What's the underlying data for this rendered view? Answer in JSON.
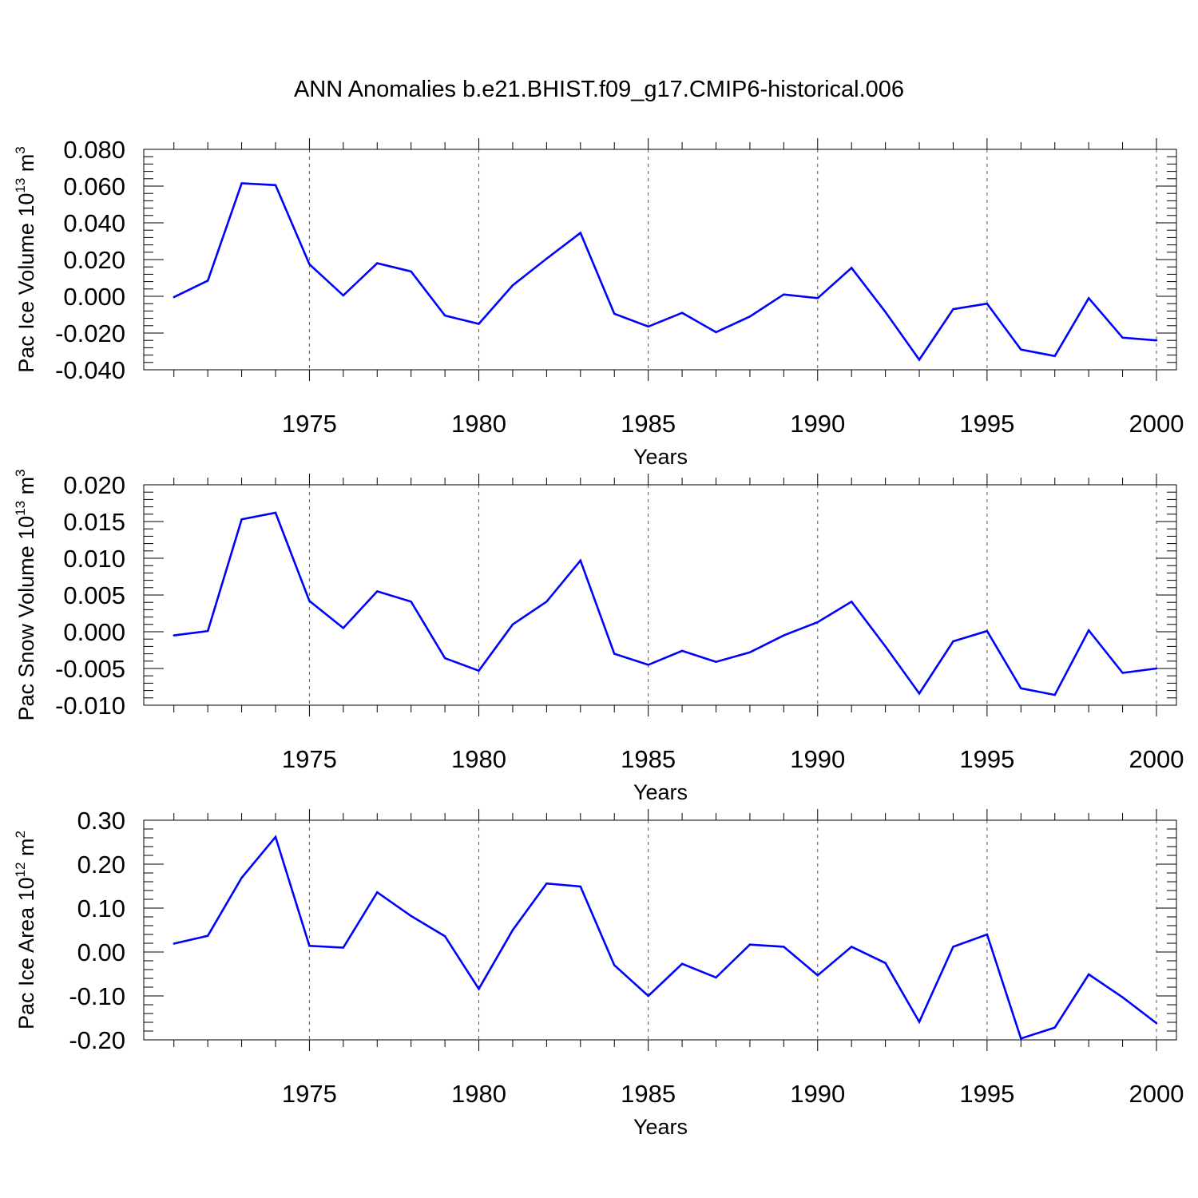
{
  "title": "ANN Anomalies b.e21.BHIST.f09_g17.CMIP6-historical.006",
  "line_color": "#0000ff",
  "chart_data": [
    {
      "type": "line",
      "ylabel_main": "Pac Ice Volume 10",
      "ylabel_exp": "13",
      "ylabel_unit": " m",
      "ylabel_unit_exp": "3",
      "xlabel": "Years",
      "xlim": [
        1970.7,
        2000
      ],
      "ylim": [
        -0.04,
        0.08
      ],
      "yticks": [
        -0.04,
        -0.02,
        0.0,
        0.02,
        0.04,
        0.06,
        0.08
      ],
      "ytick_labels": [
        "-0.040",
        "-0.020",
        "0.000",
        "0.020",
        "0.040",
        "0.060",
        "0.080"
      ],
      "xticks": [
        1975,
        1980,
        1985,
        1990,
        1995,
        2000
      ],
      "xtick_labels": [
        "1975",
        "1980",
        "1985",
        "1990",
        "1995",
        "2000"
      ],
      "grid": "vertical dashed at major x ticks",
      "x": [
        1971,
        1972,
        1973,
        1974,
        1975,
        1976,
        1977,
        1978,
        1979,
        1980,
        1981,
        1982,
        1983,
        1984,
        1985,
        1986,
        1987,
        1988,
        1989,
        1990,
        1991,
        1992,
        1993,
        1994,
        1995,
        1996,
        1997,
        1998,
        1999,
        2000
      ],
      "values": [
        -0.0005,
        0.0085,
        0.0615,
        0.0605,
        0.0175,
        0.0005,
        0.018,
        0.0135,
        -0.0105,
        -0.015,
        0.006,
        0.0205,
        0.0345,
        -0.0095,
        -0.0165,
        -0.009,
        -0.0195,
        -0.011,
        0.001,
        -0.001,
        0.0155,
        -0.0085,
        -0.0345,
        -0.007,
        -0.004,
        -0.029,
        -0.0325,
        -0.001,
        -0.0225,
        -0.024
      ]
    },
    {
      "type": "line",
      "ylabel_main": "Pac Snow Volume 10",
      "ylabel_exp": "13",
      "ylabel_unit": " m",
      "ylabel_unit_exp": "3",
      "xlabel": "Years",
      "xlim": [
        1970.7,
        2000
      ],
      "ylim": [
        -0.01,
        0.02
      ],
      "yticks": [
        -0.01,
        -0.005,
        0.0,
        0.005,
        0.01,
        0.015,
        0.02
      ],
      "ytick_labels": [
        "-0.010",
        "-0.005",
        "0.000",
        "0.005",
        "0.010",
        "0.015",
        "0.020"
      ],
      "xticks": [
        1975,
        1980,
        1985,
        1990,
        1995,
        2000
      ],
      "xtick_labels": [
        "1975",
        "1980",
        "1985",
        "1990",
        "1995",
        "2000"
      ],
      "grid": "vertical dashed at major x ticks",
      "x": [
        1971,
        1972,
        1973,
        1974,
        1975,
        1976,
        1977,
        1978,
        1979,
        1980,
        1981,
        1982,
        1983,
        1984,
        1985,
        1986,
        1987,
        1988,
        1989,
        1990,
        1991,
        1992,
        1993,
        1994,
        1995,
        1996,
        1997,
        1998,
        1999,
        2000
      ],
      "values": [
        -0.0005,
        0.0001,
        0.0153,
        0.0162,
        0.0042,
        0.0005,
        0.0055,
        0.0041,
        -0.0036,
        -0.0053,
        0.001,
        0.0041,
        0.0097,
        -0.003,
        -0.0045,
        -0.0026,
        -0.0041,
        -0.0028,
        -0.0005,
        0.0013,
        0.0041,
        -0.002,
        -0.0084,
        -0.0013,
        0.0001,
        -0.0077,
        -0.0086,
        0.0002,
        -0.0056,
        -0.005
      ]
    },
    {
      "type": "line",
      "ylabel_main": "Pac Ice Area 10",
      "ylabel_exp": "12",
      "ylabel_unit": " m",
      "ylabel_unit_exp": "2",
      "xlabel": "Years",
      "xlim": [
        1970.7,
        2000
      ],
      "ylim": [
        -0.2,
        0.3
      ],
      "yticks": [
        -0.2,
        -0.1,
        0.0,
        0.1,
        0.2,
        0.3
      ],
      "ytick_labels": [
        "-0.20",
        "-0.10",
        "0.00",
        "0.10",
        "0.20",
        "0.30"
      ],
      "xticks": [
        1975,
        1980,
        1985,
        1990,
        1995,
        2000
      ],
      "xtick_labels": [
        "1975",
        "1980",
        "1985",
        "1990",
        "1995",
        "2000"
      ],
      "grid": "vertical dashed at major x ticks",
      "x": [
        1971,
        1972,
        1973,
        1974,
        1975,
        1976,
        1977,
        1978,
        1979,
        1980,
        1981,
        1982,
        1983,
        1984,
        1985,
        1986,
        1987,
        1988,
        1989,
        1990,
        1991,
        1992,
        1993,
        1994,
        1995,
        1996,
        1997,
        1998,
        1999,
        2000
      ],
      "values": [
        0.019,
        0.037,
        0.169,
        0.262,
        0.014,
        0.01,
        0.136,
        0.082,
        0.036,
        -0.084,
        0.05,
        0.156,
        0.149,
        -0.03,
        -0.1,
        -0.027,
        -0.058,
        0.017,
        0.012,
        -0.053,
        0.012,
        -0.025,
        -0.159,
        0.012,
        0.04,
        -0.197,
        -0.172,
        -0.051,
        -0.103,
        -0.162
      ]
    }
  ]
}
